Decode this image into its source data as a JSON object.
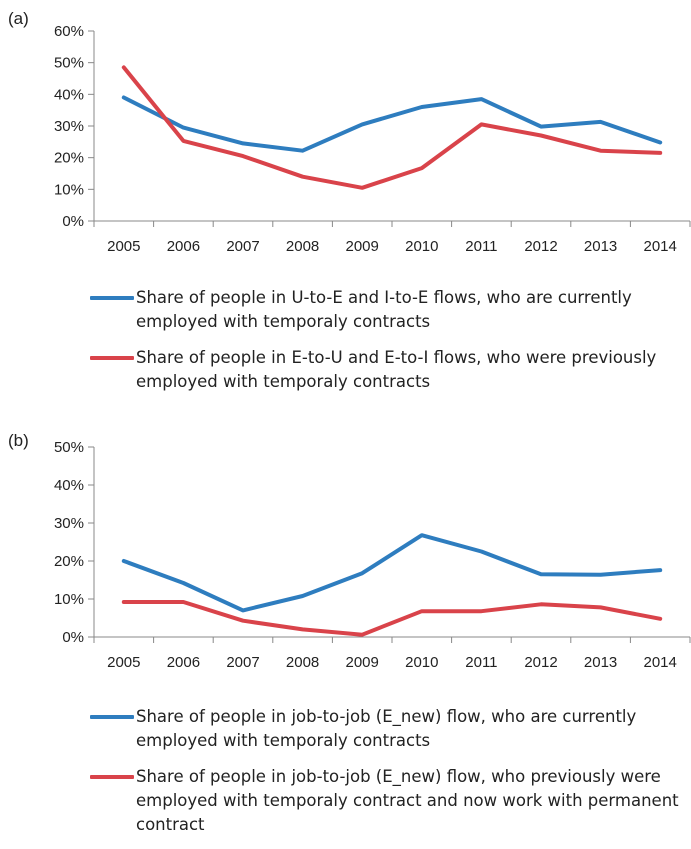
{
  "chart_data": [
    {
      "type": "line",
      "panel": "(a)",
      "x": [
        "2005",
        "2006",
        "2007",
        "2008",
        "2009",
        "2010",
        "2011",
        "2012",
        "2013",
        "2014"
      ],
      "ylim": [
        0,
        60
      ],
      "yticks": [
        "0%",
        "10%",
        "20%",
        "30%",
        "40%",
        "50%",
        "60%"
      ],
      "grid": false,
      "legend_position": "bottom",
      "series": [
        {
          "name": "Share of people in U-to-E and I-to-E flows, who are currently employed with temporaly contracts",
          "color": "#2e7dbf",
          "values": [
            39,
            29.5,
            24.5,
            22.2,
            30.5,
            36,
            38.5,
            29.8,
            31.3,
            24.8
          ]
        },
        {
          "name": "Share of people in E-to-U and E-to-I flows, who were previously employed with temporaly contracts",
          "color": "#d9434a",
          "values": [
            48.5,
            25.3,
            20.5,
            14,
            10.5,
            16.7,
            30.5,
            27,
            22.2,
            21.5
          ]
        }
      ]
    },
    {
      "type": "line",
      "panel": "(b)",
      "x": [
        "2005",
        "2006",
        "2007",
        "2008",
        "2009",
        "2010",
        "2011",
        "2012",
        "2013",
        "2014"
      ],
      "ylim": [
        0,
        50
      ],
      "yticks": [
        "0%",
        "10%",
        "20%",
        "30%",
        "40%",
        "50%"
      ],
      "grid": false,
      "legend_position": "bottom",
      "series": [
        {
          "name": "Share of people in job-to-job (E_new) flow, who are currently employed with temporaly contracts",
          "color": "#2e7dbf",
          "values": [
            20,
            14.2,
            7,
            10.8,
            16.8,
            26.8,
            22.5,
            16.5,
            16.4,
            17.6
          ]
        },
        {
          "name": "Share of people in job-to-job (E_new) flow, who previously were employed with temporaly contract and now work with permanent contract",
          "color": "#d9434a",
          "values": [
            9.2,
            9.2,
            4.3,
            2,
            0.6,
            6.8,
            6.8,
            8.6,
            7.8,
            4.8
          ]
        }
      ]
    }
  ]
}
